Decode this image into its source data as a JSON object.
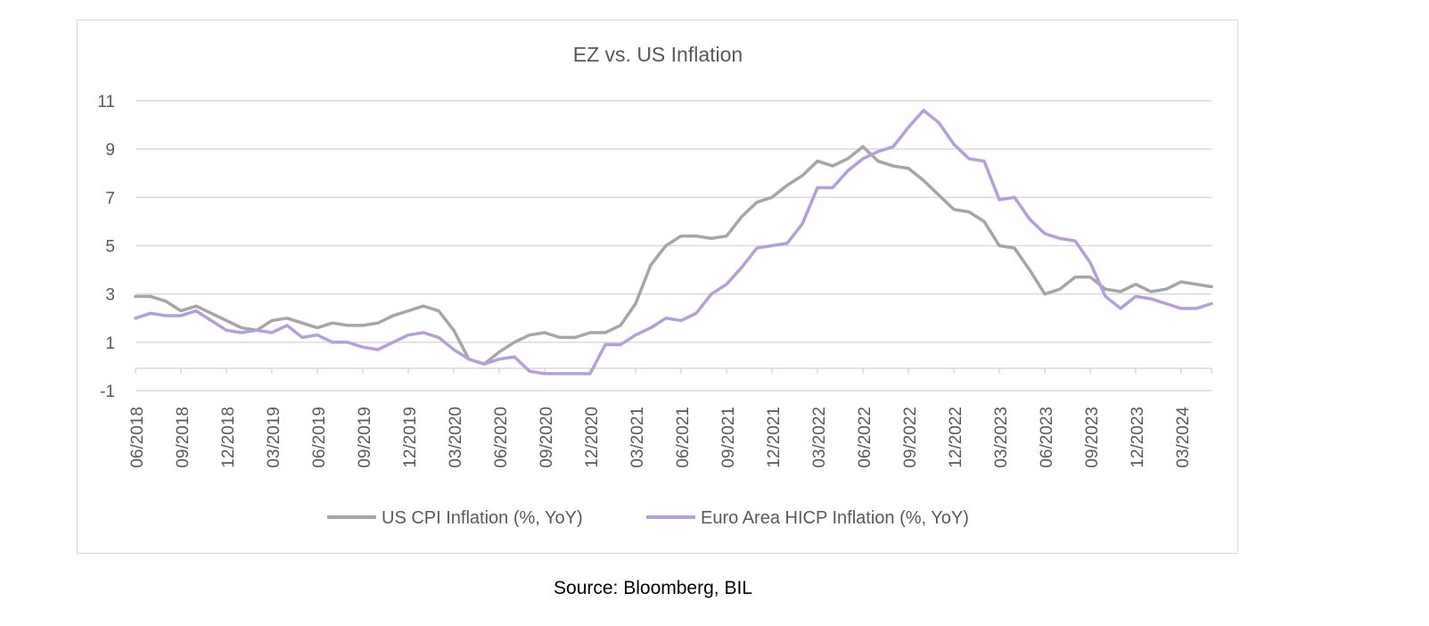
{
  "source_note": "Source: Bloomberg, BIL",
  "colors": {
    "us": "#a6a6a6",
    "ez": "#b4a0d2",
    "grid": "#d9d9d9",
    "text": "#595959"
  },
  "chart_data": {
    "type": "line",
    "title": "EZ vs. US Inflation",
    "xlabel": "",
    "ylabel": "",
    "ylim": [
      -1,
      11
    ],
    "yticks": [
      -1,
      1,
      3,
      5,
      7,
      9,
      11
    ],
    "grid": true,
    "legend": "bottom",
    "x": [
      "06/2018",
      "07/2018",
      "08/2018",
      "09/2018",
      "10/2018",
      "11/2018",
      "12/2018",
      "01/2019",
      "02/2019",
      "03/2019",
      "04/2019",
      "05/2019",
      "06/2019",
      "07/2019",
      "08/2019",
      "09/2019",
      "10/2019",
      "11/2019",
      "12/2019",
      "01/2020",
      "02/2020",
      "03/2020",
      "04/2020",
      "05/2020",
      "06/2020",
      "07/2020",
      "08/2020",
      "09/2020",
      "10/2020",
      "11/2020",
      "12/2020",
      "01/2021",
      "02/2021",
      "03/2021",
      "04/2021",
      "05/2021",
      "06/2021",
      "07/2021",
      "08/2021",
      "09/2021",
      "10/2021",
      "11/2021",
      "12/2021",
      "01/2022",
      "02/2022",
      "03/2022",
      "04/2022",
      "05/2022",
      "06/2022",
      "07/2022",
      "08/2022",
      "09/2022",
      "10/2022",
      "11/2022",
      "12/2022",
      "01/2023",
      "02/2023",
      "03/2023",
      "04/2023",
      "05/2023",
      "06/2023",
      "07/2023",
      "08/2023",
      "09/2023",
      "10/2023",
      "11/2023",
      "12/2023",
      "01/2024",
      "02/2024",
      "03/2024",
      "04/2024",
      "05/2024"
    ],
    "x_tick_labels": [
      "06/2018",
      "09/2018",
      "12/2018",
      "03/2019",
      "06/2019",
      "09/2019",
      "12/2019",
      "03/2020",
      "06/2020",
      "09/2020",
      "12/2020",
      "03/2021",
      "06/2021",
      "09/2021",
      "12/2021",
      "03/2022",
      "06/2022",
      "09/2022",
      "12/2022",
      "03/2023",
      "06/2023",
      "09/2023",
      "12/2023",
      "03/2024"
    ],
    "series": [
      {
        "name": "US CPI Inflation (%, YoY)",
        "values": [
          2.9,
          2.9,
          2.7,
          2.3,
          2.5,
          2.2,
          1.9,
          1.6,
          1.5,
          1.9,
          2.0,
          1.8,
          1.6,
          1.8,
          1.7,
          1.7,
          1.8,
          2.1,
          2.3,
          2.5,
          2.3,
          1.5,
          0.3,
          0.1,
          0.6,
          1.0,
          1.3,
          1.4,
          1.2,
          1.2,
          1.4,
          1.4,
          1.7,
          2.6,
          4.2,
          5.0,
          5.4,
          5.4,
          5.3,
          5.4,
          6.2,
          6.8,
          7.0,
          7.5,
          7.9,
          8.5,
          8.3,
          8.6,
          9.1,
          8.5,
          8.3,
          8.2,
          7.7,
          7.1,
          6.5,
          6.4,
          6.0,
          5.0,
          4.9,
          4.0,
          3.0,
          3.2,
          3.7,
          3.7,
          3.2,
          3.1,
          3.4,
          3.1,
          3.2,
          3.5,
          3.4,
          3.3
        ]
      },
      {
        "name": "Euro Area HICP Inflation (%, YoY)",
        "values": [
          2.0,
          2.2,
          2.1,
          2.1,
          2.3,
          1.9,
          1.5,
          1.4,
          1.5,
          1.4,
          1.7,
          1.2,
          1.3,
          1.0,
          1.0,
          0.8,
          0.7,
          1.0,
          1.3,
          1.4,
          1.2,
          0.7,
          0.3,
          0.1,
          0.3,
          0.4,
          -0.2,
          -0.3,
          -0.3,
          -0.3,
          -0.3,
          0.9,
          0.9,
          1.3,
          1.6,
          2.0,
          1.9,
          2.2,
          3.0,
          3.4,
          4.1,
          4.9,
          5.0,
          5.1,
          5.9,
          7.4,
          7.4,
          8.1,
          8.6,
          8.9,
          9.1,
          9.9,
          10.6,
          10.1,
          9.2,
          8.6,
          8.5,
          6.9,
          7.0,
          6.1,
          5.5,
          5.3,
          5.2,
          4.3,
          2.9,
          2.4,
          2.9,
          2.8,
          2.6,
          2.4,
          2.4,
          2.6
        ]
      }
    ]
  }
}
